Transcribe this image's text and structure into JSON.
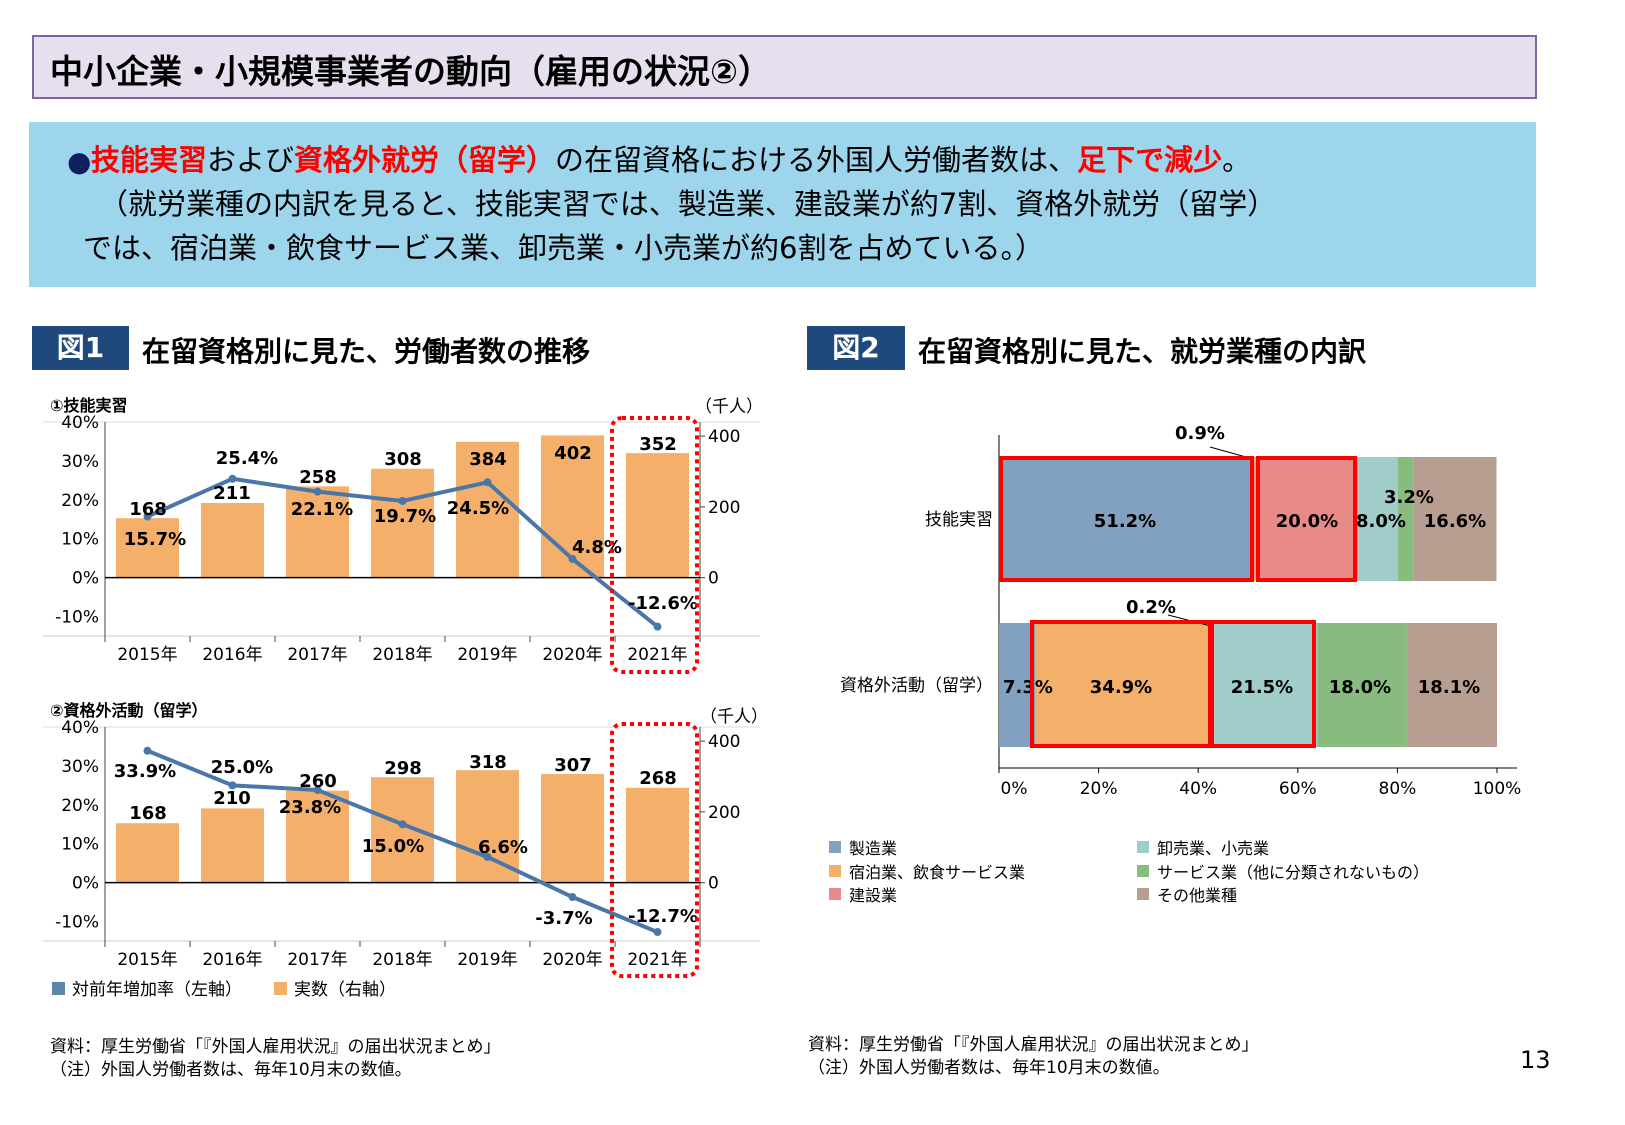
{
  "title": "中小企業・小規模事業者の動向（雇用の状況②）",
  "summary": {
    "line1": [
      {
        "text": "技能実習",
        "red": true
      },
      {
        "text": "および",
        "red": false
      },
      {
        "text": "資格外就労（留学）",
        "red": true
      },
      {
        "text": "の在留資格における外国人労働者数は、",
        "red": false
      },
      {
        "text": "足下で減少",
        "red": true
      },
      {
        "text": "。",
        "red": false
      }
    ],
    "line2": "（就労業種の内訳を見ると、技能実習では、製造業、建設業が約7割、資格外就労（留学）",
    "line3": "では、宿泊業・飲食サービス業、卸売業・小売業が約6割を占めている。）"
  },
  "fig1": {
    "tag": "図1",
    "title": "在留資格別に見た、労働者数の推移"
  },
  "fig2": {
    "tag": "図2",
    "title": "在留資格別に見た、就労業種の内訳"
  },
  "colors": {
    "bar": "#f4af6a",
    "line": "#4a76a8",
    "highlight": "#ff0000"
  },
  "chart_data": [
    {
      "type": "bar+line",
      "subtitle": "①技能実習",
      "right_unit": "（千人）",
      "categories": [
        "2015年",
        "2016年",
        "2017年",
        "2018年",
        "2019年",
        "2020年",
        "2021年"
      ],
      "series": [
        {
          "name": "対前年増加率（左軸）",
          "type": "line",
          "axis": "left",
          "values": [
            15.7,
            25.4,
            22.1,
            19.7,
            24.5,
            4.8,
            -12.6
          ]
        },
        {
          "name": "実数（右軸）",
          "type": "bar",
          "axis": "right",
          "values": [
            168,
            211,
            258,
            308,
            384,
            402,
            352
          ]
        }
      ],
      "left_ticks": [
        "40%",
        "30%",
        "20%",
        "10%",
        "0%",
        "-10%"
      ],
      "left_ylim": [
        -15,
        40
      ],
      "right_ticks": [
        "400",
        "200",
        "0"
      ],
      "right_ylim": [
        -165,
        440
      ],
      "highlight": "2021年"
    },
    {
      "type": "bar+line",
      "subtitle": "②資格外活動（留学）",
      "right_unit": "（千人）",
      "categories": [
        "2015年",
        "2016年",
        "2017年",
        "2018年",
        "2019年",
        "2020年",
        "2021年"
      ],
      "series": [
        {
          "name": "対前年増加率（左軸）",
          "type": "line",
          "axis": "left",
          "values": [
            33.9,
            25.0,
            23.8,
            15.0,
            6.6,
            -3.7,
            -12.7
          ]
        },
        {
          "name": "実数（右軸）",
          "type": "bar",
          "axis": "right",
          "values": [
            168,
            210,
            260,
            298,
            318,
            307,
            268
          ]
        }
      ],
      "left_ticks": [
        "40%",
        "30%",
        "20%",
        "10%",
        "0%",
        "-10%"
      ],
      "left_ylim": [
        -15,
        40
      ],
      "right_ticks": [
        "400",
        "200",
        "0"
      ],
      "right_ylim": [
        -165,
        440
      ],
      "highlight": "2021年"
    },
    {
      "type": "stacked-bar-horizontal-100",
      "categories": [
        "技能実習",
        "資格外活動（留学）"
      ],
      "series": [
        {
          "name": "製造業",
          "color": "#82a1c0",
          "values": [
            51.2,
            7.3
          ]
        },
        {
          "name": "宿泊業、飲食サービス業",
          "color": "#f4af6a",
          "values": [
            0.9,
            34.9
          ]
        },
        {
          "name": "建設業",
          "color": "#e88a88",
          "values": [
            20.0,
            0.2
          ]
        },
        {
          "name": "卸売業、小売業",
          "color": "#a0cdc9",
          "values": [
            8.0,
            21.5
          ]
        },
        {
          "name": "サービス業（他に分類されないもの）",
          "color": "#88bb80",
          "values": [
            3.2,
            18.0
          ]
        },
        {
          "name": "その他業種",
          "color": "#b89e90",
          "values": [
            16.6,
            18.1
          ]
        }
      ],
      "labels": [
        [
          "51.2%",
          "0.9%",
          "20.0%",
          "8.0%",
          "3.2%",
          "16.6%"
        ],
        [
          "7.3%",
          "34.9%",
          "0.2%",
          "21.5%",
          "18.0%",
          "18.1%"
        ]
      ],
      "x_ticks": [
        "0%",
        "20%",
        "40%",
        "60%",
        "80%",
        "100%"
      ],
      "xlim": [
        0,
        100
      ]
    }
  ],
  "legend1": [
    "対前年増加率（左軸）",
    "実数（右軸）"
  ],
  "source_left": [
    "資料：厚生労働省「『外国人雇用状況』の届出状況まとめ」",
    "（注）外国人労働者数は、毎年10月末の数値。"
  ],
  "source_right": [
    "資料：厚生労働省「『外国人雇用状況』の届出状況まとめ」",
    "（注）外国人労働者数は、毎年10月末の数値。"
  ],
  "page_number": "13"
}
